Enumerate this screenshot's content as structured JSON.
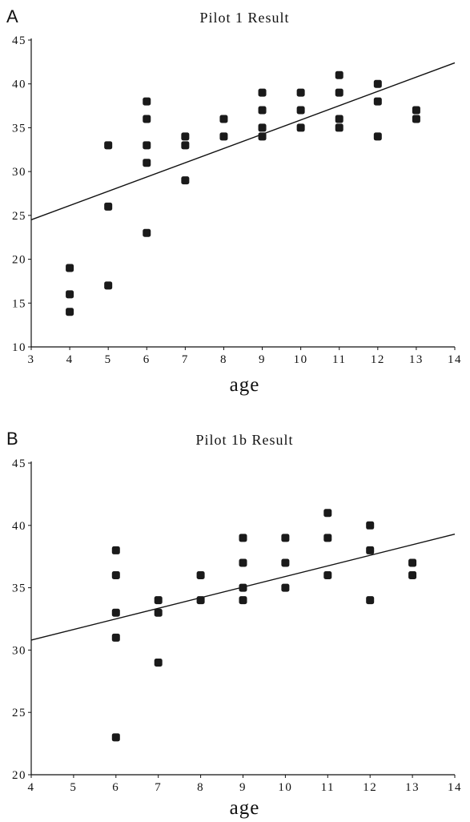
{
  "panels": [
    {
      "letter": "A"
    },
    {
      "letter": "B"
    }
  ],
  "chart_data": [
    {
      "type": "scatter",
      "title": "Pilot 1 Result",
      "xlabel": "age",
      "ylabel": "",
      "xlim": [
        3,
        14
      ],
      "ylim": [
        10,
        45
      ],
      "xticks": [
        3,
        4,
        5,
        6,
        7,
        8,
        9,
        10,
        11,
        12,
        13,
        14
      ],
      "yticks": [
        10,
        15,
        20,
        25,
        30,
        35,
        40,
        45
      ],
      "grid": false,
      "trendline": {
        "x": [
          3,
          14
        ],
        "y": [
          24.5,
          42.4
        ]
      },
      "series": [
        {
          "x": [
            4,
            4,
            4,
            5,
            5,
            5,
            6,
            6,
            6,
            6,
            6,
            7,
            7,
            7,
            8,
            8,
            9,
            9,
            9,
            9,
            10,
            10,
            10,
            11,
            11,
            11,
            11,
            12,
            12,
            12,
            13,
            13
          ],
          "y": [
            19,
            16,
            14,
            33,
            26,
            17,
            38,
            36,
            33,
            31,
            23,
            34,
            33,
            29,
            36,
            34,
            39,
            37,
            35,
            34,
            39,
            37,
            35,
            41,
            39,
            36,
            35,
            40,
            38,
            34,
            37,
            36
          ]
        }
      ]
    },
    {
      "type": "scatter",
      "title": "Pilot 1b Result",
      "xlabel": "age",
      "ylabel": "",
      "xlim": [
        4,
        14
      ],
      "ylim": [
        20,
        45
      ],
      "xticks": [
        4,
        5,
        6,
        7,
        8,
        9,
        10,
        11,
        12,
        13,
        14
      ],
      "yticks": [
        20,
        25,
        30,
        35,
        40,
        45
      ],
      "grid": false,
      "trendline": {
        "x": [
          4,
          14
        ],
        "y": [
          30.8,
          39.3
        ]
      },
      "series": [
        {
          "x": [
            6,
            6,
            6,
            6,
            6,
            7,
            7,
            7,
            8,
            8,
            9,
            9,
            9,
            9,
            10,
            10,
            10,
            11,
            11,
            11,
            12,
            12,
            12,
            13,
            13
          ],
          "y": [
            38,
            36,
            33,
            31,
            23,
            34,
            33,
            29,
            36,
            34,
            39,
            37,
            35,
            34,
            39,
            37,
            35,
            41,
            39,
            36,
            40,
            38,
            34,
            37,
            36
          ]
        }
      ]
    }
  ]
}
